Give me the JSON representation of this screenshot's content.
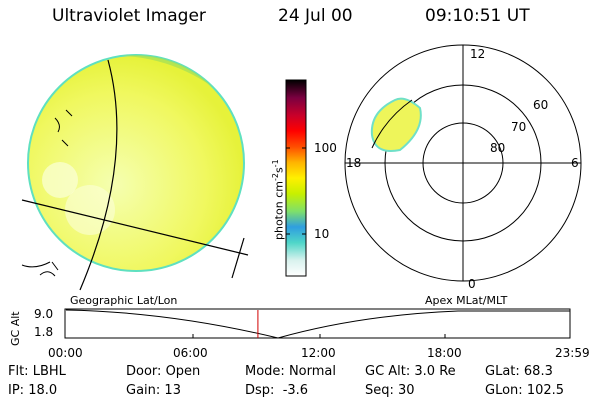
{
  "header": {
    "title": "Ultraviolet Imager",
    "date": "24 Jul 00",
    "time": "09:10:51 UT"
  },
  "colorbar": {
    "label_main": "photon cm",
    "label_exp1": "-2",
    "label_mid": "s",
    "label_exp2": "-1",
    "ticks": [
      {
        "label": "100",
        "value": 100
      },
      {
        "label": "10",
        "value": 10
      }
    ],
    "colors": [
      "#ffffff",
      "#d9f2ee",
      "#4fd6c8",
      "#2f9ee0",
      "#7fe06a",
      "#c8f000",
      "#fff000",
      "#ffb300",
      "#ff4d00",
      "#ff0000",
      "#c8002a",
      "#7a0040",
      "#000000"
    ]
  },
  "polar_plot": {
    "mlt_labels": {
      "top": "12",
      "left": "18",
      "right": "6",
      "bottom": "0"
    },
    "lat_labels": [
      "60",
      "70",
      "80"
    ]
  },
  "timeline": {
    "left_label": "Geographic Lat/Lon",
    "right_label": "Apex MLat/MLT",
    "axis_label": "GC Alt",
    "y_ticks": [
      "9.0",
      "1.8"
    ],
    "x_ticks": [
      "00:00",
      "06:00",
      "12:00",
      "18:00",
      "23:59"
    ],
    "current_time_fraction": 0.382
  },
  "info": {
    "filter": {
      "label": "Flt:",
      "value": "LBHL"
    },
    "ip": {
      "label": "IP:",
      "value": "18.0"
    },
    "door": {
      "label": "Door:",
      "value": "Open"
    },
    "gain": {
      "label": "Gain:",
      "value": "13"
    },
    "mode": {
      "label": "Mode:",
      "value": "Normal"
    },
    "dsp": {
      "label": "Dsp:",
      "value": "-3.6"
    },
    "gc_alt": {
      "label": "GC Alt:",
      "value": "3.0 Re"
    },
    "seq": {
      "label": "Seq:",
      "value": "30"
    },
    "glat": {
      "label": "GLat:",
      "value": "68.3"
    },
    "glon": {
      "label": "GLon:",
      "value": "102.5"
    }
  }
}
